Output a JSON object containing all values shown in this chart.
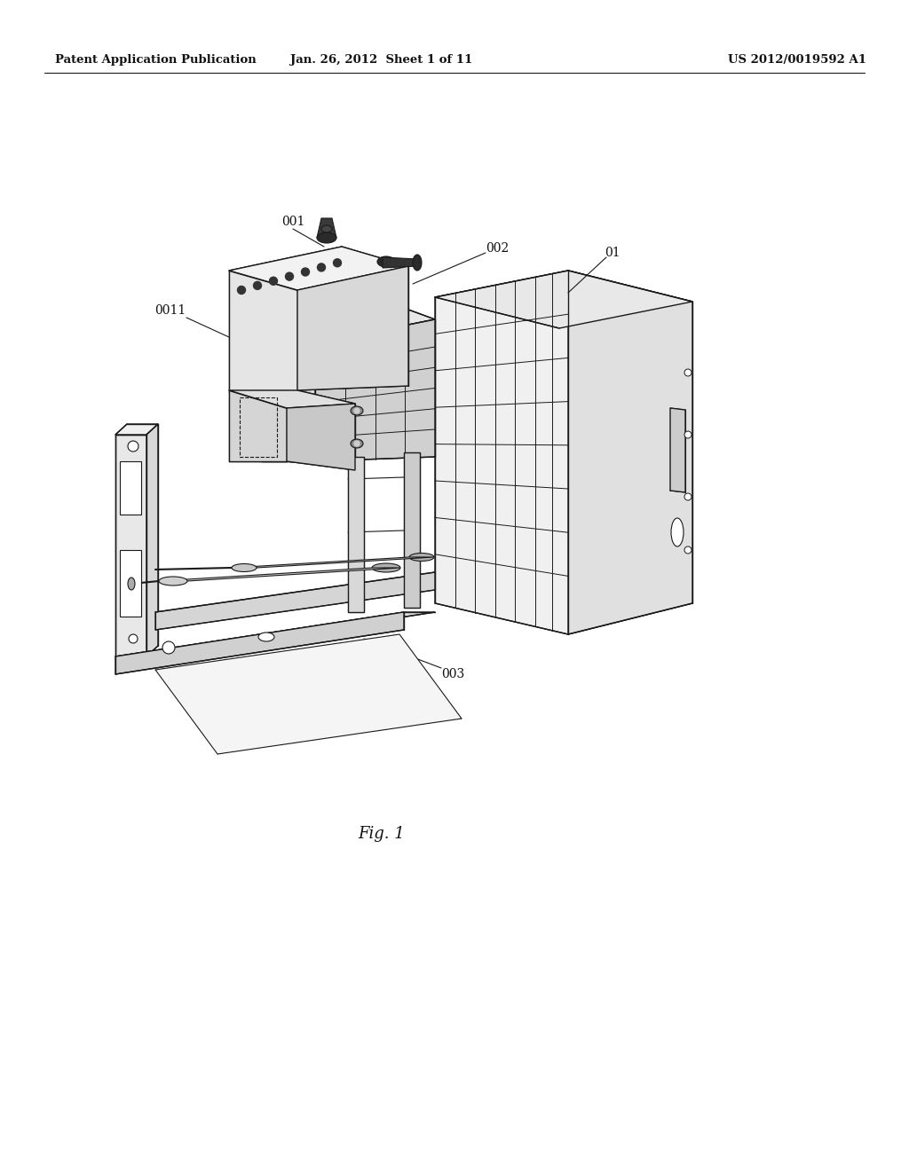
{
  "header_left": "Patent Application Publication",
  "header_mid": "Jan. 26, 2012  Sheet 1 of 11",
  "header_right": "US 2012/0019592 A1",
  "caption": "Fig. 1",
  "background": "#ffffff",
  "line_color": "#1a1a1a",
  "line_width": 1.0,
  "header_fontsize": 9.5,
  "caption_fontsize": 13,
  "label_fontsize": 10
}
